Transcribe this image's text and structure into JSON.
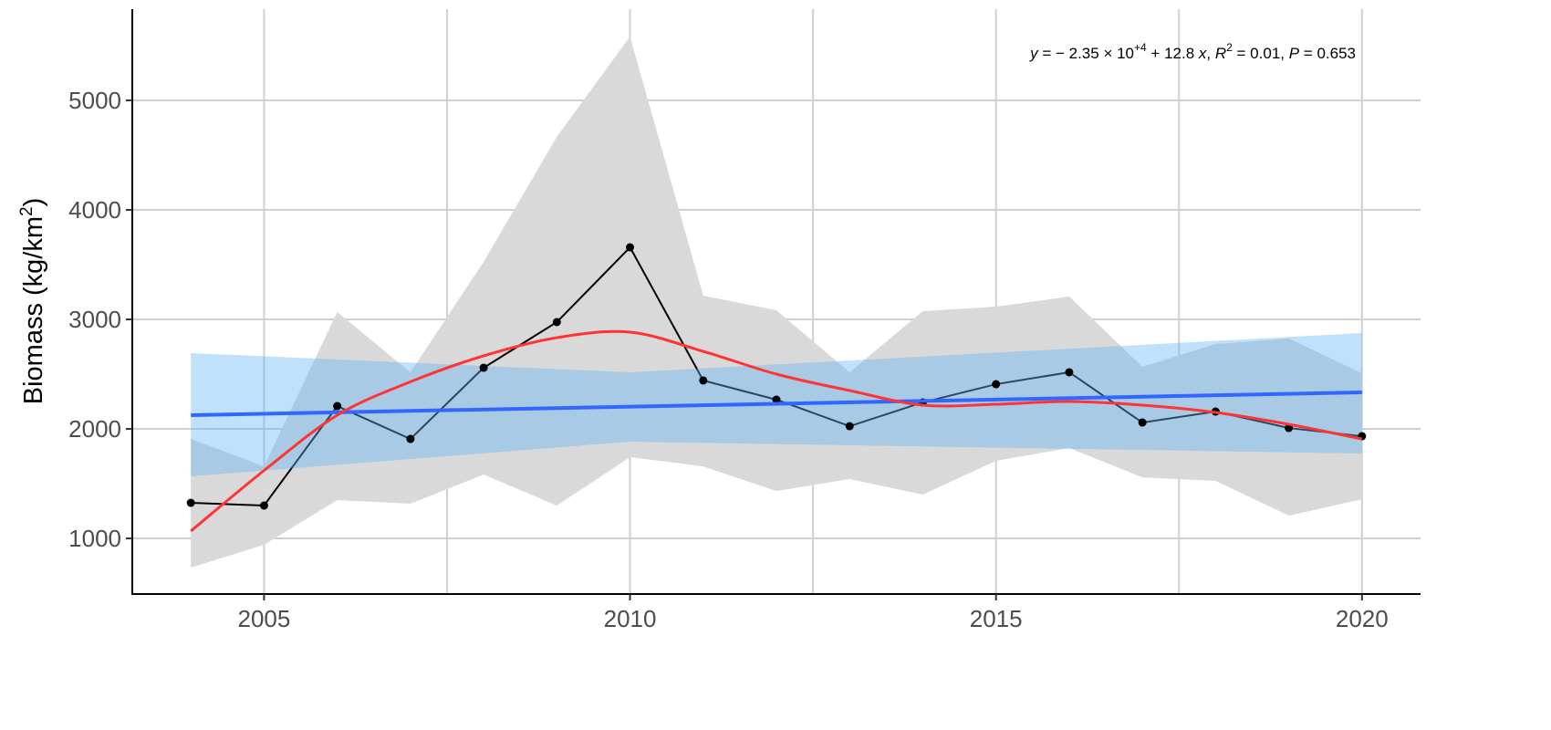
{
  "chart_data": {
    "type": "line",
    "title": "",
    "xlabel": "",
    "ylabel": "Biomass (kg/km",
    "ylabel_sup": "2",
    "ylabel_close": ")",
    "xlim": [
      2003.2,
      2020.8
    ],
    "ylim": [
      492,
      5833
    ],
    "xticks": [
      2005,
      2010,
      2015,
      2020
    ],
    "yticks": [
      1000,
      2000,
      3000,
      4000,
      5000
    ],
    "grid": true,
    "annotation": {
      "p1": "y",
      "p2": " = − 2.35 × 10",
      "exp": "+4",
      "p3": " + 12.8 ",
      "p4": "x",
      "p5": ", ",
      "p6": "R",
      "sup2": "2",
      "p7": " = 0.01, ",
      "p8": "P",
      "p9": " = 0.653"
    },
    "x": [
      2004,
      2005,
      2006,
      2007,
      2008,
      2009,
      2010,
      2011,
      2012,
      2013,
      2014,
      2015,
      2016,
      2017,
      2018,
      2019,
      2020
    ],
    "series": [
      {
        "role": "observed",
        "color": "#000000",
        "values": [
          1325,
          1300,
          2208,
          1908,
          2558,
          2975,
          3658,
          2442,
          2267,
          2025,
          2242,
          2408,
          2517,
          2058,
          2158,
          2008,
          1933
        ]
      },
      {
        "role": "observed-interval",
        "color": "#d9d9d9",
        "upper": [
          1908,
          1658,
          3067,
          2517,
          3525,
          4667,
          5583,
          3217,
          3083,
          2517,
          3075,
          3117,
          3208,
          2567,
          2775,
          2825,
          2508
        ],
        "lower": [
          733,
          942,
          1350,
          1317,
          1583,
          1300,
          1742,
          1658,
          1433,
          1542,
          1400,
          1708,
          1825,
          1558,
          1525,
          1208,
          1358
        ]
      },
      {
        "role": "linear-fit",
        "color": "#3366ff",
        "band_color": "#5fb3f5",
        "x": [
          2004,
          2010,
          2020
        ],
        "values": [
          2125,
          2205,
          2333
        ],
        "upper": [
          2692,
          2517,
          2875
        ],
        "lower": [
          1567,
          1883,
          1775
        ]
      },
      {
        "role": "smooth",
        "color": "#ff3333",
        "values": [
          1067,
          1620,
          2125,
          2430,
          2667,
          2833,
          2883,
          2708,
          2500,
          2350,
          2217,
          2225,
          2250,
          2217,
          2150,
          2042,
          1908
        ]
      }
    ]
  }
}
